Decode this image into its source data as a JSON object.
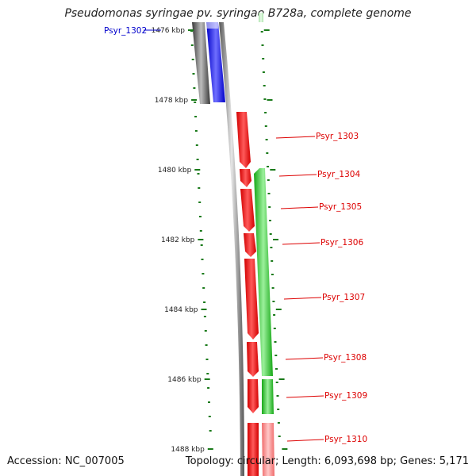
{
  "title": "Pseudomonas syringae pv. syringae B728a, complete genome",
  "footer": {
    "accession": "Accession: NC_007005",
    "topology": "Topology: circular; Length: 6,093,698 bp; Genes: 5,171"
  },
  "ruler": {
    "unit": "kbp",
    "ticks": [
      {
        "kbp": 1476,
        "label": "1476 kbp"
      },
      {
        "kbp": 1478,
        "label": "1478 kbp"
      },
      {
        "kbp": 1480,
        "label": "1480 kbp"
      },
      {
        "kbp": 1482,
        "label": "1482 kbp"
      },
      {
        "kbp": 1484,
        "label": "1484 kbp"
      },
      {
        "kbp": 1486,
        "label": "1486 kbp"
      },
      {
        "kbp": 1488,
        "label": "1488 kbp"
      }
    ]
  },
  "colors": {
    "backbone": "#808080",
    "neighbor_left": "#5a5a5a",
    "selected_gene": "#0000ff",
    "gene_plus": "#ff0000",
    "gene_minus": "#22cc22",
    "gene_faded": "#ff8a8a",
    "tick": "#1a7a1a",
    "label_selected": "#0000cc",
    "label_gene": "#dd0000"
  },
  "genes": [
    {
      "id": "Psyr_1302",
      "color": "selected",
      "label": "Psyr_1302"
    },
    {
      "id": "Psyr_1303",
      "color": "red",
      "label": "Psyr_1303"
    },
    {
      "id": "Psyr_1304",
      "color": "red",
      "label": "Psyr_1304"
    },
    {
      "id": "Psyr_1305",
      "color": "red",
      "label": "Psyr_1305"
    },
    {
      "id": "Psyr_1306",
      "color": "red",
      "label": "Psyr_1306"
    },
    {
      "id": "Psyr_1307",
      "color": "red",
      "label": "Psyr_1307"
    },
    {
      "id": "Psyr_1308",
      "color": "red",
      "label": "Psyr_1308"
    },
    {
      "id": "Psyr_1309",
      "color": "red",
      "label": "Psyr_1309"
    },
    {
      "id": "Psyr_1310",
      "color": "faded",
      "label": "Psyr_1310"
    }
  ],
  "minus_genes": [
    {
      "id": "minus-a",
      "color": "green"
    },
    {
      "id": "minus-b",
      "color": "green"
    },
    {
      "id": "minus-c",
      "color": "faded"
    }
  ]
}
